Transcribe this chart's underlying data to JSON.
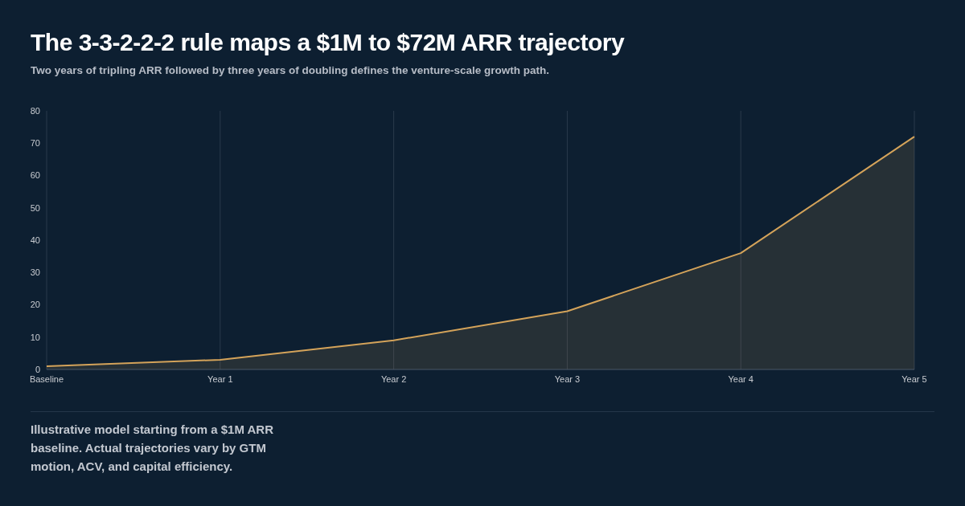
{
  "chart_data": {
    "type": "area",
    "title": "The 3-3-2-2-2 rule maps a $1M to $72M ARR trajectory",
    "subtitle": "Two years of tripling ARR followed by three years of doubling defines the venture-scale growth path.",
    "categories": [
      "Baseline",
      "Year 1",
      "Year 2",
      "Year 3",
      "Year 4",
      "Year 5"
    ],
    "values": [
      1,
      3,
      9,
      18,
      36,
      72
    ],
    "color": "#d4a35a",
    "ylim": [
      0,
      80
    ],
    "yticks": [
      0,
      10,
      20,
      30,
      40,
      50,
      60,
      70,
      80
    ],
    "grid": "x",
    "annotations": [
      "Illustrative model starting from a $1M ARR baseline. Actual trajectories vary by GTM motion, ACV, and capital efficiency."
    ]
  }
}
